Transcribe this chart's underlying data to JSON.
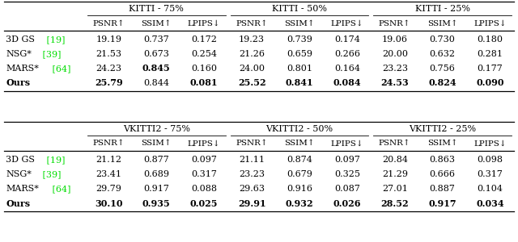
{
  "section1_headers": [
    "KITTI - 75%",
    "KITTI - 50%",
    "KITTI - 25%"
  ],
  "section2_headers": [
    "VKITTI2 - 75%",
    "VKITTI2 - 50%",
    "VKITTI2 - 25%"
  ],
  "col_headers": [
    "PSNR↑",
    "SSIM↑",
    "LPIPS↓"
  ],
  "row_labels_base": [
    "3D GS",
    "NSG*",
    "MARS*",
    "Ours"
  ],
  "row_label_refs": [
    " [19]",
    " [39]",
    " [64]",
    null
  ],
  "kitti_data": [
    [
      [
        "19.19",
        "0.737",
        "0.172"
      ],
      [
        "19.23",
        "0.739",
        "0.174"
      ],
      [
        "19.06",
        "0.730",
        "0.180"
      ]
    ],
    [
      [
        "21.53",
        "0.673",
        "0.254"
      ],
      [
        "21.26",
        "0.659",
        "0.266"
      ],
      [
        "20.00",
        "0.632",
        "0.281"
      ]
    ],
    [
      [
        "24.23",
        "0.845",
        "0.160"
      ],
      [
        "24.00",
        "0.801",
        "0.164"
      ],
      [
        "23.23",
        "0.756",
        "0.177"
      ]
    ],
    [
      [
        "25.79",
        "0.844",
        "0.081"
      ],
      [
        "25.52",
        "0.841",
        "0.084"
      ],
      [
        "24.53",
        "0.824",
        "0.090"
      ]
    ]
  ],
  "vkitti2_data": [
    [
      [
        "21.12",
        "0.877",
        "0.097"
      ],
      [
        "21.11",
        "0.874",
        "0.097"
      ],
      [
        "20.84",
        "0.863",
        "0.098"
      ]
    ],
    [
      [
        "23.41",
        "0.689",
        "0.317"
      ],
      [
        "23.23",
        "0.679",
        "0.325"
      ],
      [
        "21.29",
        "0.666",
        "0.317"
      ]
    ],
    [
      [
        "29.79",
        "0.917",
        "0.088"
      ],
      [
        "29.63",
        "0.916",
        "0.087"
      ],
      [
        "27.01",
        "0.887",
        "0.104"
      ]
    ],
    [
      [
        "30.10",
        "0.935",
        "0.025"
      ],
      [
        "29.91",
        "0.932",
        "0.026"
      ],
      [
        "28.52",
        "0.917",
        "0.034"
      ]
    ]
  ],
  "kitti_bold": {
    "0": [
      [
        false,
        false,
        false
      ],
      [
        false,
        false,
        false
      ],
      [
        false,
        false,
        false
      ]
    ],
    "1": [
      [
        false,
        false,
        false
      ],
      [
        false,
        false,
        false
      ],
      [
        false,
        false,
        false
      ]
    ],
    "2": [
      [
        false,
        true,
        false
      ],
      [
        false,
        false,
        false
      ],
      [
        false,
        false,
        false
      ]
    ],
    "3": [
      [
        true,
        false,
        true
      ],
      [
        true,
        true,
        true
      ],
      [
        true,
        true,
        true
      ]
    ]
  },
  "vkitti2_bold": {
    "0": [
      [
        false,
        false,
        false
      ],
      [
        false,
        false,
        false
      ],
      [
        false,
        false,
        false
      ]
    ],
    "1": [
      [
        false,
        false,
        false
      ],
      [
        false,
        false,
        false
      ],
      [
        false,
        false,
        false
      ]
    ],
    "2": [
      [
        false,
        false,
        false
      ],
      [
        false,
        false,
        false
      ],
      [
        false,
        false,
        false
      ]
    ],
    "3": [
      [
        true,
        true,
        true
      ],
      [
        true,
        true,
        true
      ],
      [
        true,
        true,
        true
      ]
    ]
  },
  "ref_color": "#00dd00",
  "bg_color": "#ffffff",
  "text_color": "#000000",
  "font_size": 8.0
}
